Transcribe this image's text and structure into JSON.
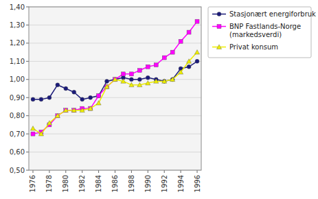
{
  "chart_data": {
    "type": "line",
    "x": [
      1976,
      1977,
      1978,
      1979,
      1980,
      1981,
      1982,
      1983,
      1984,
      1985,
      1986,
      1987,
      1988,
      1989,
      1990,
      1991,
      1992,
      1993,
      1994,
      1995,
      1996
    ],
    "series": [
      {
        "name": "Stasjonært energiforbruk",
        "color": "#1a1a7a",
        "marker": "circle",
        "values": [
          0.89,
          0.89,
          0.9,
          0.97,
          0.95,
          0.93,
          0.89,
          0.9,
          0.91,
          0.99,
          1.0,
          1.01,
          1.0,
          1.0,
          1.01,
          1.0,
          0.99,
          1.0,
          1.06,
          1.07,
          1.1
        ]
      },
      {
        "name": "BNP Fastlands-Norge\n(markedsverdi)",
        "color": "#ff00ff",
        "marker": "square",
        "values": [
          0.7,
          0.71,
          0.75,
          0.8,
          0.83,
          0.83,
          0.84,
          0.84,
          0.91,
          0.96,
          1.0,
          1.03,
          1.03,
          1.05,
          1.07,
          1.08,
          1.12,
          1.15,
          1.21,
          1.26,
          1.32
        ]
      },
      {
        "name": "Privat konsum",
        "color": "#eeee00",
        "marker": "triangle",
        "values": [
          0.73,
          0.7,
          0.76,
          0.8,
          0.83,
          0.83,
          0.83,
          0.84,
          0.87,
          0.96,
          1.0,
          0.99,
          0.97,
          0.97,
          0.98,
          0.99,
          0.99,
          1.0,
          1.04,
          1.1,
          1.15
        ]
      }
    ],
    "xlim": [
      1975.5,
      1996.5
    ],
    "xticks": [
      1976,
      1978,
      1980,
      1982,
      1984,
      1986,
      1988,
      1990,
      1992,
      1994,
      1996
    ],
    "ylim": [
      0.5,
      1.4
    ],
    "yticks": [
      {
        "value": 0.5,
        "label": "0,50"
      },
      {
        "value": 0.6,
        "label": "0,60"
      },
      {
        "value": 0.7,
        "label": "0,70"
      },
      {
        "value": 0.8,
        "label": "0,80"
      },
      {
        "value": 0.9,
        "label": "0,90"
      },
      {
        "value": 1.0,
        "label": "1,00"
      },
      {
        "value": 1.1,
        "label": "1,10"
      },
      {
        "value": 1.2,
        "label": "1,20"
      },
      {
        "value": 1.3,
        "label": "1,30"
      },
      {
        "value": 1.4,
        "label": "1,40"
      }
    ],
    "grid": "y",
    "legend": "right"
  }
}
